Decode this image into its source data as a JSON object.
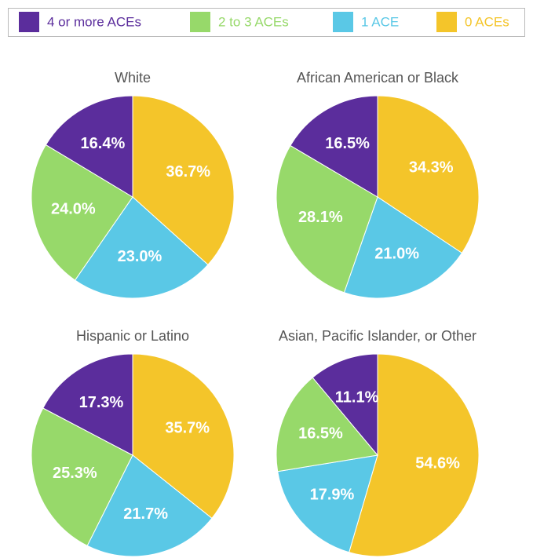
{
  "legend": {
    "names": [
      "4 or more ACEs",
      "2 to 3 ACEs",
      "1 ACE",
      "0 ACEs"
    ],
    "colors": [
      "#5b2d9c",
      "#97d96a",
      "#5ac8e6",
      "#f4c52a"
    ]
  },
  "chart_data": [
    {
      "type": "pie",
      "title": "White",
      "values": [
        16.4,
        24.0,
        23.0,
        36.7
      ],
      "value_labels": [
        "16.4%",
        "24.0%",
        "23.0%",
        "36.7%"
      ]
    },
    {
      "type": "pie",
      "title": "African American or Black",
      "values": [
        16.5,
        28.1,
        21.0,
        34.3
      ],
      "value_labels": [
        "16.5%",
        "28.1%",
        "21.0%",
        "34.3%"
      ]
    },
    {
      "type": "pie",
      "title": "Hispanic or Latino",
      "values": [
        17.3,
        25.3,
        21.7,
        35.7
      ],
      "value_labels": [
        "17.3%",
        "25.3%",
        "21.7%",
        "35.7%"
      ]
    },
    {
      "type": "pie",
      "title": "Asian, Pacific Islander, or Other",
      "values": [
        11.1,
        16.5,
        17.9,
        54.6
      ],
      "value_labels": [
        "11.1%",
        "16.5%",
        "17.9%",
        "54.6%"
      ]
    }
  ]
}
